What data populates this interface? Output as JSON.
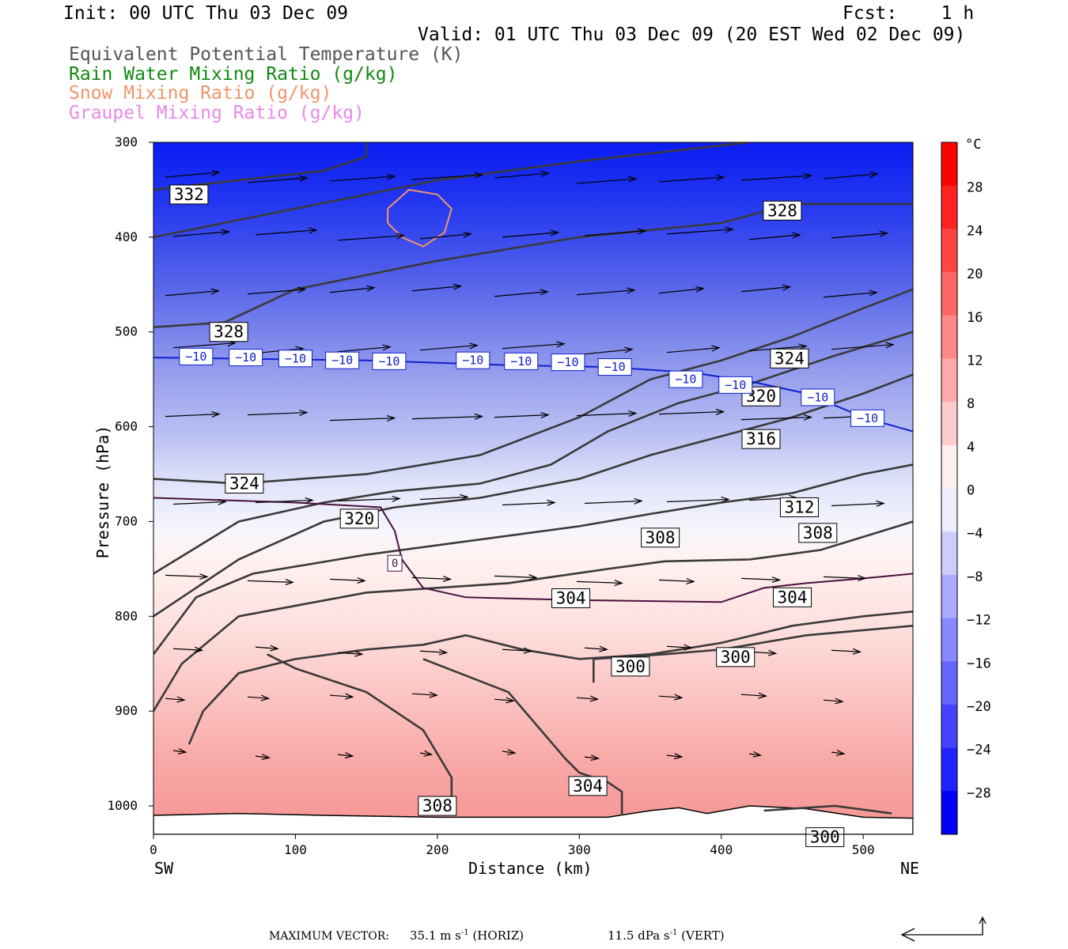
{
  "header": {
    "init": "Init: 00 UTC Thu 03 Dec 09",
    "fcst": "Fcst:    1 h",
    "valid": "Valid: 01 UTC Thu 03 Dec 09 (20 EST Wed 02 Dec 09)"
  },
  "legend": [
    {
      "label": "Equivalent Potential Temperature (K)",
      "color": "#555555"
    },
    {
      "label": "Rain Water Mixing Ratio (g/kg)",
      "color": "#118811"
    },
    {
      "label": "Snow Mixing Ratio (g/kg)",
      "color": "#f0956a"
    },
    {
      "label": "Graupel Mixing Ratio (g/kg)",
      "color": "#e888e8"
    }
  ],
  "footer": {
    "max_vector_label": "MAXIMUM VECTOR:",
    "horiz": "35.1 m s",
    "horiz_unit": "(HORIZ)",
    "vert": "11.5 dPa s",
    "vert_unit": "(VERT)",
    "exp": "-1"
  },
  "chart_data": {
    "type": "contour",
    "xlabel": "Distance (km)",
    "ylabel": "Pressure (hPa)",
    "x_ticks": [
      0,
      100,
      200,
      300,
      400,
      500
    ],
    "xlim": [
      0,
      535
    ],
    "y_ticks": [
      300,
      400,
      500,
      600,
      700,
      800,
      900,
      1000
    ],
    "ylim": [
      300,
      1030
    ],
    "x_left_label": "SW",
    "x_right_label": "NE",
    "colorbar": {
      "unit": "°C",
      "ticks": [
        28,
        24,
        20,
        16,
        12,
        8,
        4,
        0,
        -4,
        -8,
        -12,
        -16,
        -20,
        -24,
        -28
      ],
      "range": [
        -32,
        32
      ]
    },
    "theta_e_contours": [
      {
        "value": 332,
        "points": [
          [
            0,
            350
          ],
          [
            60,
            340
          ],
          [
            120,
            330
          ],
          [
            150,
            315
          ],
          [
            150,
            300
          ]
        ]
      },
      {
        "value": 328,
        "points": [
          [
            0,
            495
          ],
          [
            50,
            490
          ],
          [
            100,
            455
          ],
          [
            200,
            425
          ],
          [
            300,
            400
          ],
          [
            400,
            385
          ],
          [
            450,
            365
          ],
          [
            535,
            365
          ]
        ]
      },
      {
        "value": 328,
        "points": [
          [
            0,
            400
          ],
          [
            100,
            370
          ],
          [
            200,
            340
          ],
          [
            300,
            320
          ],
          [
            420,
            300
          ]
        ]
      },
      {
        "value": 324,
        "points": [
          [
            0,
            655
          ],
          [
            60,
            660
          ],
          [
            150,
            650
          ],
          [
            230,
            630
          ],
          [
            300,
            590
          ],
          [
            350,
            550
          ],
          [
            400,
            530
          ],
          [
            450,
            505
          ],
          [
            500,
            475
          ],
          [
            535,
            455
          ]
        ]
      },
      {
        "value": 320,
        "points": [
          [
            0,
            755
          ],
          [
            60,
            700
          ],
          [
            120,
            680
          ],
          [
            170,
            668
          ],
          [
            230,
            660
          ],
          [
            280,
            640
          ],
          [
            320,
            605
          ],
          [
            370,
            575
          ],
          [
            420,
            555
          ],
          [
            480,
            525
          ],
          [
            535,
            500
          ]
        ]
      },
      {
        "value": 316,
        "points": [
          [
            0,
            800
          ],
          [
            60,
            740
          ],
          [
            120,
            700
          ],
          [
            170,
            685
          ],
          [
            230,
            675
          ],
          [
            300,
            655
          ],
          [
            350,
            630
          ],
          [
            400,
            610
          ],
          [
            450,
            590
          ],
          [
            500,
            565
          ],
          [
            535,
            545
          ]
        ]
      },
      {
        "value": 312,
        "points": [
          [
            0,
            840
          ],
          [
            30,
            780
          ],
          [
            70,
            755
          ],
          [
            150,
            735
          ],
          [
            250,
            715
          ],
          [
            300,
            705
          ],
          [
            350,
            692
          ],
          [
            400,
            680
          ],
          [
            450,
            670
          ],
          [
            500,
            650
          ],
          [
            535,
            640
          ]
        ]
      },
      {
        "value": 308,
        "points": [
          [
            0,
            900
          ],
          [
            20,
            850
          ],
          [
            60,
            800
          ],
          [
            150,
            775
          ],
          [
            250,
            765
          ],
          [
            320,
            750
          ],
          [
            360,
            742
          ],
          [
            420,
            740
          ],
          [
            470,
            730
          ],
          [
            535,
            700
          ]
        ]
      },
      {
        "value": 304,
        "points": [
          [
            25,
            935
          ],
          [
            35,
            900
          ],
          [
            60,
            860
          ],
          [
            100,
            845
          ],
          [
            150,
            835
          ],
          [
            190,
            830
          ],
          [
            220,
            820
          ],
          [
            260,
            835
          ],
          [
            300,
            845
          ],
          [
            350,
            840
          ],
          [
            400,
            828
          ],
          [
            450,
            810
          ],
          [
            500,
            800
          ],
          [
            535,
            795
          ]
        ]
      },
      {
        "value": 300,
        "points": [
          [
            310,
            870
          ],
          [
            310,
            845
          ],
          [
            360,
            840
          ],
          [
            400,
            835
          ],
          [
            460,
            820
          ],
          [
            535,
            810
          ]
        ]
      },
      {
        "value": 308,
        "points": [
          [
            210,
            1010
          ],
          [
            210,
            970
          ],
          [
            190,
            920
          ],
          [
            150,
            880
          ],
          [
            100,
            855
          ],
          [
            80,
            840
          ]
        ]
      },
      {
        "value": 304,
        "points": [
          [
            330,
            1010
          ],
          [
            330,
            985
          ],
          [
            320,
            975
          ],
          [
            300,
            965
          ],
          [
            290,
            950
          ],
          [
            250,
            880
          ],
          [
            190,
            845
          ]
        ]
      },
      {
        "value": 300,
        "points": [
          [
            430,
            1005
          ],
          [
            480,
            1000
          ],
          [
            520,
            1008
          ]
        ]
      }
    ],
    "zero_isotherm": [
      [
        0,
        675
      ],
      [
        100,
        680
      ],
      [
        160,
        685
      ],
      [
        170,
        710
      ],
      [
        175,
        740
      ],
      [
        190,
        770
      ],
      [
        220,
        780
      ],
      [
        300,
        783
      ],
      [
        400,
        785
      ],
      [
        430,
        770
      ],
      [
        460,
        765
      ],
      [
        500,
        760
      ],
      [
        535,
        755
      ]
    ],
    "minus10_isotherm": [
      [
        0,
        527
      ],
      [
        150,
        530
      ],
      [
        250,
        535
      ],
      [
        320,
        537
      ],
      [
        380,
        543
      ],
      [
        420,
        552
      ],
      [
        460,
        565
      ],
      [
        500,
        590
      ],
      [
        535,
        605
      ]
    ],
    "snow_contour": [
      [
        165,
        370
      ],
      [
        180,
        350
      ],
      [
        200,
        355
      ],
      [
        210,
        370
      ],
      [
        205,
        395
      ],
      [
        190,
        410
      ],
      [
        175,
        400
      ],
      [
        165,
        385
      ]
    ],
    "max_vector_horiz_ms": 35.1,
    "max_vector_vert_dpas": 11.5
  }
}
